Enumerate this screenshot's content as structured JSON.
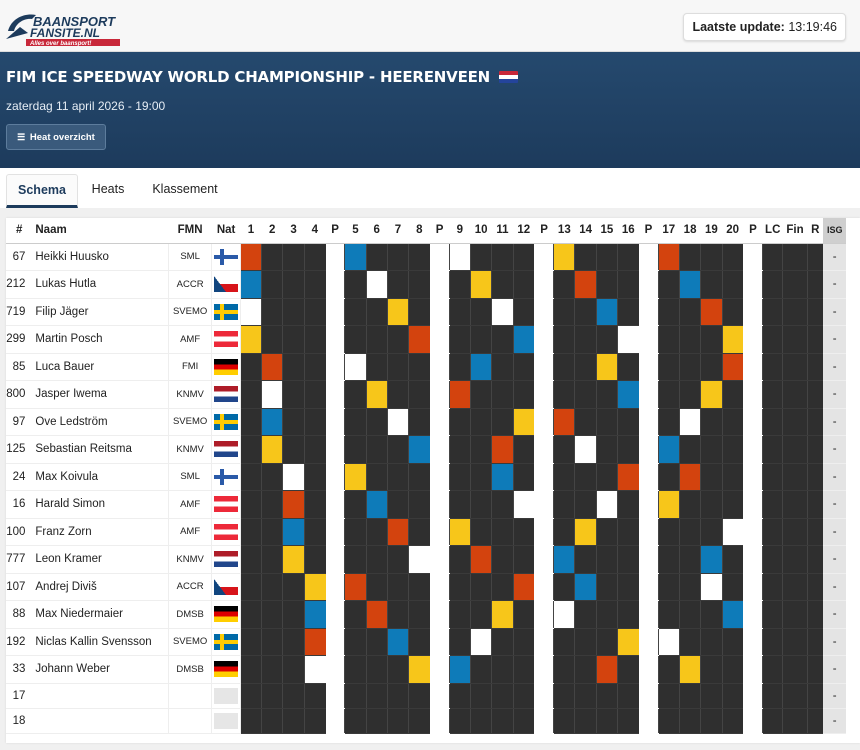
{
  "header": {
    "logo_line1": "BAANSPORT",
    "logo_line2": "FANSITE.NL",
    "logo_tagline": "Alles over baansport!",
    "update_label": "Laatste update:",
    "update_time": "13:19:46"
  },
  "event": {
    "title": "FIM ICE SPEEDWAY WORLD CHAMPIONSHIP - HEERENVEEN",
    "date": "zaterdag 11 april 2026 - 19:00",
    "heat_button": "Heat overzicht"
  },
  "tabs": [
    {
      "label": "Schema",
      "active": true
    },
    {
      "label": "Heats",
      "active": false
    },
    {
      "label": "Klassement",
      "active": false
    }
  ],
  "table": {
    "headers": [
      "#",
      "Naam",
      "FMN",
      "Nat",
      "1",
      "2",
      "3",
      "4",
      "P",
      "5",
      "6",
      "7",
      "8",
      "P",
      "9",
      "10",
      "11",
      "12",
      "P",
      "13",
      "14",
      "15",
      "16",
      "P",
      "17",
      "18",
      "19",
      "20",
      "P",
      "LC",
      "Fin",
      "R",
      "ISG"
    ],
    "gate_colors": {
      "1": "#f7c61a",
      "2": "#0e7bb9",
      "3": "#ffffff",
      "4": "#d3430e"
    },
    "riders": [
      {
        "no": "67",
        "name": "Heikki Huusko",
        "fmn": "SML",
        "nat": "fin",
        "isg": "-",
        "heats": {
          "1": 4,
          "5": 2,
          "9": 3,
          "13": 1,
          "17": 4
        }
      },
      {
        "no": "212",
        "name": "Lukas Hutla",
        "fmn": "ACCR",
        "nat": "cze",
        "isg": "-",
        "heats": {
          "1": 2,
          "6": 3,
          "10": 1,
          "14": 4,
          "18": 2
        }
      },
      {
        "no": "719",
        "name": "Filip Jäger",
        "fmn": "SVEMO",
        "nat": "swe",
        "isg": "-",
        "heats": {
          "1": 3,
          "7": 1,
          "11": 3,
          "15": 2,
          "19": 4
        }
      },
      {
        "no": "299",
        "name": "Martin Posch",
        "fmn": "AMF",
        "nat": "aut",
        "isg": "-",
        "heats": {
          "1": 1,
          "8": 4,
          "12": 2,
          "16": 3,
          "20": 1
        }
      },
      {
        "no": "85",
        "name": "Luca Bauer",
        "fmn": "FMI",
        "nat": "ger",
        "isg": "-",
        "heats": {
          "2": 4,
          "5": 3,
          "10": 2,
          "15": 1,
          "20": 4
        }
      },
      {
        "no": "800",
        "name": "Jasper Iwema",
        "fmn": "KNMV",
        "nat": "ned",
        "isg": "-",
        "heats": {
          "2": 3,
          "6": 1,
          "9": 4,
          "16": 2,
          "19": 1
        }
      },
      {
        "no": "97",
        "name": "Ove Ledström",
        "fmn": "SVEMO",
        "nat": "swe",
        "isg": "-",
        "heats": {
          "2": 2,
          "7": 3,
          "12": 1,
          "13": 4,
          "18": 3
        }
      },
      {
        "no": "125",
        "name": "Sebastian Reitsma",
        "fmn": "KNMV",
        "nat": "ned",
        "isg": "-",
        "heats": {
          "2": 1,
          "8": 2,
          "11": 4,
          "14": 3,
          "17": 2
        }
      },
      {
        "no": "24",
        "name": "Max Koivula",
        "fmn": "SML",
        "nat": "fin",
        "isg": "-",
        "heats": {
          "3": 3,
          "5": 1,
          "11": 2,
          "16": 4,
          "18": 4
        }
      },
      {
        "no": "16",
        "name": "Harald Simon",
        "fmn": "AMF",
        "nat": "aut",
        "isg": "-",
        "heats": {
          "3": 4,
          "6": 2,
          "12": 3,
          "15": 3,
          "17": 1
        }
      },
      {
        "no": "100",
        "name": "Franz Zorn",
        "fmn": "AMF",
        "nat": "aut",
        "isg": "-",
        "heats": {
          "3": 2,
          "7": 4,
          "9": 1,
          "14": 1,
          "20": 3
        }
      },
      {
        "no": "777",
        "name": "Leon Kramer",
        "fmn": "KNMV",
        "nat": "ned",
        "isg": "-",
        "heats": {
          "3": 1,
          "8": 3,
          "10": 4,
          "13": 2,
          "19": 2
        }
      },
      {
        "no": "107",
        "name": "Andrej Diviš",
        "fmn": "ACCR",
        "nat": "cze",
        "isg": "-",
        "heats": {
          "4": 1,
          "5": 4,
          "12": 4,
          "14": 2,
          "19": 3
        }
      },
      {
        "no": "88",
        "name": "Max Niedermaier",
        "fmn": "DMSB",
        "nat": "ger",
        "isg": "-",
        "heats": {
          "4": 2,
          "6": 4,
          "11": 1,
          "13": 3,
          "20": 2
        }
      },
      {
        "no": "192",
        "name": "Niclas Kallin Svensson",
        "fmn": "SVEMO",
        "nat": "swe",
        "isg": "-",
        "heats": {
          "4": 4,
          "7": 2,
          "10": 3,
          "16": 1,
          "17": 3
        }
      },
      {
        "no": "33",
        "name": "Johann Weber",
        "fmn": "DMSB",
        "nat": "ger",
        "isg": "-",
        "heats": {
          "4": 3,
          "8": 1,
          "9": 2,
          "15": 4,
          "18": 1
        }
      },
      {
        "no": "17",
        "name": "",
        "fmn": "",
        "nat": "none",
        "isg": "-",
        "heats": {}
      },
      {
        "no": "18",
        "name": "",
        "fmn": "",
        "nat": "none",
        "isg": "-",
        "heats": {}
      }
    ]
  }
}
